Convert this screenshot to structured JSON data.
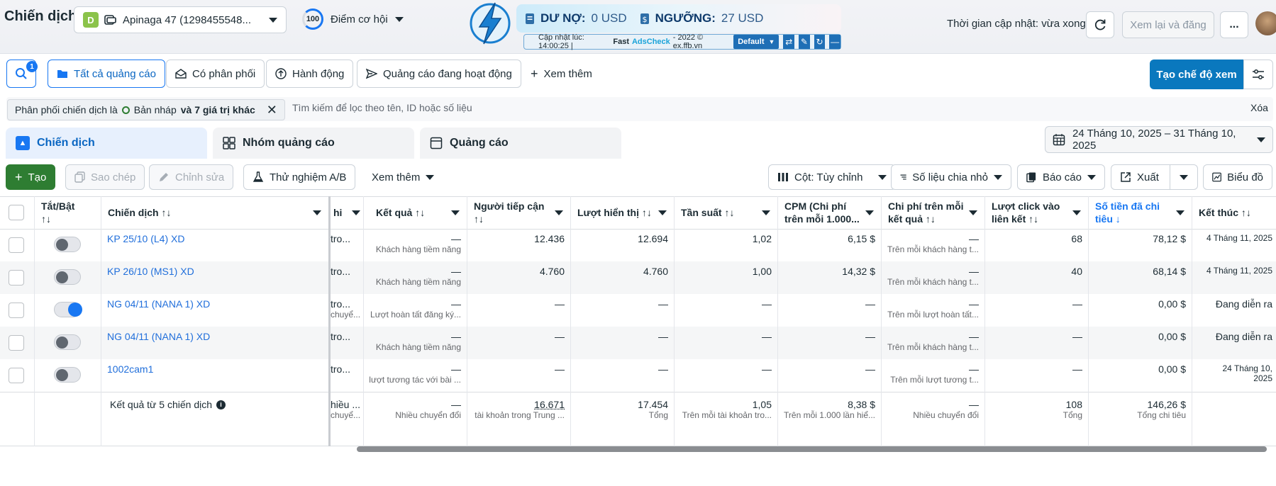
{
  "topbar": {
    "title": "Chiến dịch",
    "account_badge": "D",
    "account_name": "Apinaga 47 (1298455548...",
    "score": "100",
    "score_label": "Điểm cơ hội",
    "debt_label": "DƯ NỢ:",
    "debt_value": "0 USD",
    "threshold_label": "NGƯỠNG:",
    "threshold_value": "27 USD",
    "updated_prefix": "Cập nhật lúc: 14:00:25 |",
    "updated_fast": "Fast",
    "updated_brand": "AdsCheck",
    "updated_suffix": "- 2022 © ex.ffb.vn",
    "profile": "Default",
    "sync_text": "Thời gian cập nhật: vừa xong",
    "review_label": "Xem lại và đăng",
    "more_label": "..."
  },
  "filters": {
    "notif_count": "1",
    "chips": [
      "Tất cả quảng cáo",
      "Có phân phối",
      "Hành động",
      "Quảng cáo đang hoạt động"
    ],
    "see_more": "Xem thêm",
    "create_view": "Tạo chế độ xem",
    "active_filter_prefix": "Phân phối chiến dịch là",
    "active_filter_value": "Bản nháp",
    "active_filter_more": "và 7 giá trị khác",
    "search_placeholder": "Tìm kiếm để lọc theo tên, ID hoặc số liệu",
    "clear_label": "Xóa"
  },
  "tabs": [
    "Chiến dịch",
    "Nhóm quảng cáo",
    "Quảng cáo"
  ],
  "date_range": "24 Tháng 10, 2025 – 31 Tháng 10, 2025",
  "toolbar": {
    "create": "Tạo",
    "copy": "Sao chép",
    "edit": "Chỉnh sửa",
    "ab_test": "Thử nghiệm A/B",
    "see_more": "Xem thêm",
    "columns": "Cột: Tùy chỉnh",
    "breakdown": "Số liệu chia nhỏ",
    "reports": "Báo cáo",
    "export": "Xuất",
    "charts": "Biểu đồ"
  },
  "table": {
    "headers": {
      "toggle": "Tắt/Bật",
      "toggle_sort": "↑↓",
      "campaign": "Chiến dịch ↑↓",
      "clipped": "hi",
      "results": "Kết quả ↑↓",
      "reach": "Người tiếp cận",
      "reach_sort": "↑↓",
      "impressions": "Lượt hiển thị ↑↓",
      "frequency": "Tần suất ↑↓",
      "cpm": "CPM (Chi phí",
      "cpm2": "trên mỗi 1.000...",
      "cpr": "Chi phí trên mỗi",
      "cpr2": "kết quả ↑↓",
      "clicks": "Lượt click vào",
      "clicks2": "liên kết ↑↓",
      "spent": "Số tiền đã chi",
      "spent2": "tiêu ↓",
      "ends": "Kết thúc ↑↓"
    },
    "rows": [
      {
        "name": "KP 25/10 (L4) XD",
        "on": false,
        "clipped": "tro...",
        "result": "—",
        "result_sub": "Khách hàng tiềm năng",
        "reach": "12.436",
        "impressions": "12.694",
        "frequency": "1,02",
        "cpm": "6,15 $",
        "cpr": "—",
        "cpr_sub": "Trên mỗi khách hàng t...",
        "clicks": "68",
        "spent": "78,12 $",
        "ends": "4 Tháng 11, 2025",
        "ends2": ""
      },
      {
        "name": "KP 26/10 (MS1) XD",
        "on": false,
        "clipped": "tro...",
        "result": "—",
        "result_sub": "Khách hàng tiềm năng",
        "reach": "4.760",
        "impressions": "4.760",
        "frequency": "1,00",
        "cpm": "14,32 $",
        "cpr": "—",
        "cpr_sub": "Trên mỗi khách hàng t...",
        "clicks": "40",
        "spent": "68,14 $",
        "ends": "4 Tháng 11, 2025",
        "ends2": ""
      },
      {
        "name": "NG 04/11 (NANA 1) XD",
        "on": true,
        "clipped": "tro...",
        "clipped2": "chuyể...",
        "result": "—",
        "result_sub": "Lượt hoàn tất đăng ký...",
        "reach": "—",
        "impressions": "—",
        "frequency": "—",
        "cpm": "—",
        "cpr": "—",
        "cpr_sub": "Trên mỗi lượt hoàn tất...",
        "clicks": "—",
        "spent": "0,00 $",
        "ends": "Đang diễn ra",
        "ends2": ""
      },
      {
        "name": "NG 04/11 (NANA 1) XD",
        "on": false,
        "clipped": "tro...",
        "result": "—",
        "result_sub": "Khách hàng tiềm năng",
        "reach": "—",
        "impressions": "—",
        "frequency": "—",
        "cpm": "—",
        "cpr": "—",
        "cpr_sub": "Trên mỗi khách hàng t...",
        "clicks": "—",
        "spent": "0,00 $",
        "ends": "Đang diễn ra",
        "ends2": ""
      },
      {
        "name": "1002cam1",
        "on": false,
        "clipped": "tro...",
        "result": "—",
        "result_sub": "lượt tương tác với bài ...",
        "reach": "—",
        "impressions": "—",
        "frequency": "—",
        "cpm": "—",
        "cpr": "—",
        "cpr_sub": "Trên mỗi lượt tương t...",
        "clicks": "—",
        "spent": "0,00 $",
        "ends": "24 Tháng 10,",
        "ends2": "2025"
      }
    ],
    "summary": {
      "label": "Kết quả từ 5 chiến dịch",
      "clipped": "hiều ...",
      "clipped2": "chuyể...",
      "result": "—",
      "result_sub": "Nhiều chuyển đổi",
      "reach": "16.671",
      "reach_sub": "tài khoản trong Trung ...",
      "impressions": "17.454",
      "impressions_sub": "Tổng",
      "frequency": "1,05",
      "frequency_sub": "Trên mỗi tài khoản tro...",
      "cpm": "8,38 $",
      "cpm_sub": "Trên mỗi 1.000 lần hiể...",
      "cpr": "—",
      "cpr_sub": "Nhiều chuyển đổi",
      "clicks": "108",
      "clicks_sub": "Tổng",
      "spent": "146,26 $",
      "spent_sub": "Tổng chi tiêu"
    }
  },
  "colors": {
    "accent": "#1877f2",
    "create_green": "#2e7d32",
    "primary_blue": "#0a78be"
  }
}
